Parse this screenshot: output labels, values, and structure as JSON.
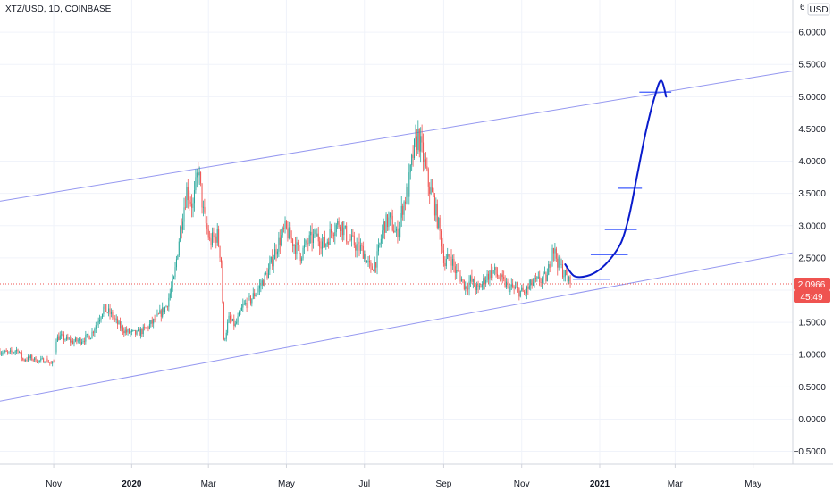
{
  "symbol_label": "XTZ/USD, 1D, COINBASE",
  "currency_label": "USD",
  "current_price_label": "2.0966",
  "countdown_label": "45:49",
  "colors": {
    "up": "#26a69a",
    "down": "#ef5350",
    "channel": "#9598f0",
    "projection": "#0a1ccc",
    "level": "#3d5afe",
    "price_tag": "#ef5350",
    "grid": "#f0f3fa"
  },
  "chart_data": {
    "type": "candlestick",
    "title": "XTZ/USD, 1D, COINBASE",
    "y_axis_side": "right",
    "ylim": [
      -0.7,
      6.5
    ],
    "y_ticks": [
      "6.0000",
      "5.5000",
      "5.0000",
      "4.5000",
      "4.0000",
      "3.5000",
      "3.0000",
      "2.5000",
      "2.0000",
      "1.5000",
      "1.0000",
      "0.5000",
      "0.0000",
      "−0.5000"
    ],
    "y_tick_values": [
      6.0,
      5.5,
      5.0,
      4.5,
      4.0,
      3.5,
      3.0,
      2.5,
      2.0,
      1.5,
      1.0,
      0.5,
      0.0,
      -0.5
    ],
    "y_tick_top_partial": "6",
    "x_range": [
      "2019-09-20",
      "2021-06-01"
    ],
    "x_ticks": [
      {
        "label": "Nov",
        "date": "2019-11-01",
        "bold": false
      },
      {
        "label": "2020",
        "date": "2020-01-01",
        "bold": true
      },
      {
        "label": "Mar",
        "date": "2020-03-01",
        "bold": false
      },
      {
        "label": "May",
        "date": "2020-05-01",
        "bold": false
      },
      {
        "label": "Jul",
        "date": "2020-07-01",
        "bold": false
      },
      {
        "label": "Sep",
        "date": "2020-09-01",
        "bold": false
      },
      {
        "label": "Nov",
        "date": "2020-11-01",
        "bold": false
      },
      {
        "label": "2021",
        "date": "2021-01-01",
        "bold": true
      },
      {
        "label": "Mar",
        "date": "2021-03-01",
        "bold": false
      },
      {
        "label": "May",
        "date": "2021-05-01",
        "bold": false
      }
    ],
    "price_path": [
      [
        "2019-09-20",
        1.05
      ],
      [
        "2019-09-27",
        1.02
      ],
      [
        "2019-10-04",
        1.08
      ],
      [
        "2019-10-08",
        0.92
      ],
      [
        "2019-10-14",
        0.95
      ],
      [
        "2019-10-20",
        0.9
      ],
      [
        "2019-10-26",
        0.92
      ],
      [
        "2019-10-30",
        0.85
      ],
      [
        "2019-11-01",
        0.88
      ],
      [
        "2019-11-03",
        1.25
      ],
      [
        "2019-11-06",
        1.28
      ],
      [
        "2019-11-15",
        1.2
      ],
      [
        "2019-11-22",
        1.22
      ],
      [
        "2019-11-30",
        1.3
      ],
      [
        "2019-12-06",
        1.55
      ],
      [
        "2019-12-10",
        1.72
      ],
      [
        "2019-12-16",
        1.62
      ],
      [
        "2019-12-22",
        1.45
      ],
      [
        "2019-12-28",
        1.35
      ],
      [
        "2020-01-05",
        1.32
      ],
      [
        "2020-01-12",
        1.4
      ],
      [
        "2020-01-20",
        1.55
      ],
      [
        "2020-01-28",
        1.75
      ],
      [
        "2020-02-03",
        2.15
      ],
      [
        "2020-02-08",
        2.95
      ],
      [
        "2020-02-13",
        3.55
      ],
      [
        "2020-02-18",
        3.3
      ],
      [
        "2020-02-22",
        3.9
      ],
      [
        "2020-02-26",
        3.2
      ],
      [
        "2020-03-02",
        2.75
      ],
      [
        "2020-03-08",
        2.85
      ],
      [
        "2020-03-11",
        2.45
      ],
      [
        "2020-03-13",
        1.2
      ],
      [
        "2020-03-17",
        1.55
      ],
      [
        "2020-03-22",
        1.45
      ],
      [
        "2020-03-28",
        1.75
      ],
      [
        "2020-04-03",
        1.85
      ],
      [
        "2020-04-10",
        2.05
      ],
      [
        "2020-04-17",
        2.3
      ],
      [
        "2020-04-24",
        2.7
      ],
      [
        "2020-04-30",
        2.95
      ],
      [
        "2020-05-06",
        2.75
      ],
      [
        "2020-05-12",
        2.55
      ],
      [
        "2020-05-18",
        2.75
      ],
      [
        "2020-05-24",
        2.85
      ],
      [
        "2020-05-31",
        2.7
      ],
      [
        "2020-06-06",
        2.95
      ],
      [
        "2020-06-12",
        3.05
      ],
      [
        "2020-06-18",
        2.8
      ],
      [
        "2020-06-24",
        2.7
      ],
      [
        "2020-06-30",
        2.6
      ],
      [
        "2020-07-06",
        2.3
      ],
      [
        "2020-07-11",
        2.5
      ],
      [
        "2020-07-16",
        3.0
      ],
      [
        "2020-07-21",
        3.1
      ],
      [
        "2020-07-26",
        2.85
      ],
      [
        "2020-07-31",
        3.3
      ],
      [
        "2020-08-04",
        3.55
      ],
      [
        "2020-08-08",
        4.1
      ],
      [
        "2020-08-12",
        4.4
      ],
      [
        "2020-08-16",
        4.05
      ],
      [
        "2020-08-20",
        3.65
      ],
      [
        "2020-08-24",
        3.4
      ],
      [
        "2020-08-28",
        3.0
      ],
      [
        "2020-09-02",
        2.4
      ],
      [
        "2020-09-06",
        2.55
      ],
      [
        "2020-09-10",
        2.3
      ],
      [
        "2020-09-14",
        2.2
      ],
      [
        "2020-09-18",
        2.05
      ],
      [
        "2020-09-22",
        2.15
      ],
      [
        "2020-09-28",
        2.0
      ],
      [
        "2020-10-04",
        2.2
      ],
      [
        "2020-10-10",
        2.3
      ],
      [
        "2020-10-16",
        2.15
      ],
      [
        "2020-10-22",
        2.05
      ],
      [
        "2020-10-28",
        2.0
      ],
      [
        "2020-11-03",
        1.95
      ],
      [
        "2020-11-09",
        2.1
      ],
      [
        "2020-11-15",
        2.15
      ],
      [
        "2020-11-21",
        2.2
      ],
      [
        "2020-11-25",
        2.7
      ],
      [
        "2020-11-29",
        2.45
      ],
      [
        "2020-12-03",
        2.3
      ],
      [
        "2020-12-09",
        2.1
      ]
    ],
    "candle_start": "2019-09-20",
    "candle_end": "2020-12-09",
    "current_price": 2.0966,
    "drawings": {
      "channel_upper": [
        [
          "2019-09-20",
          3.38
        ],
        [
          "2021-06-01",
          5.4
        ]
      ],
      "channel_lower": [
        [
          "2019-09-20",
          0.28
        ],
        [
          "2021-06-01",
          2.58
        ]
      ],
      "projection_curve": [
        [
          "2020-12-05",
          2.4
        ],
        [
          "2020-12-12",
          2.22
        ],
        [
          "2020-12-22",
          2.22
        ],
        [
          "2021-01-01",
          2.32
        ],
        [
          "2021-01-10",
          2.5
        ],
        [
          "2021-01-18",
          2.75
        ],
        [
          "2021-01-24",
          3.15
        ],
        [
          "2021-01-30",
          3.75
        ],
        [
          "2021-02-06",
          4.45
        ],
        [
          "2021-02-13",
          5.0
        ],
        [
          "2021-02-18",
          5.25
        ],
        [
          "2021-02-22",
          5.0
        ]
      ],
      "levels": [
        {
          "from": "2020-12-11",
          "to": "2021-01-09",
          "y": 2.17
        },
        {
          "from": "2020-12-25",
          "to": "2021-01-23",
          "y": 2.55
        },
        {
          "from": "2021-01-05",
          "to": "2021-01-30",
          "y": 2.94
        },
        {
          "from": "2021-01-15",
          "to": "2021-02-03",
          "y": 3.58
        },
        {
          "from": "2021-02-01",
          "to": "2021-02-26",
          "y": 5.07
        }
      ]
    }
  }
}
